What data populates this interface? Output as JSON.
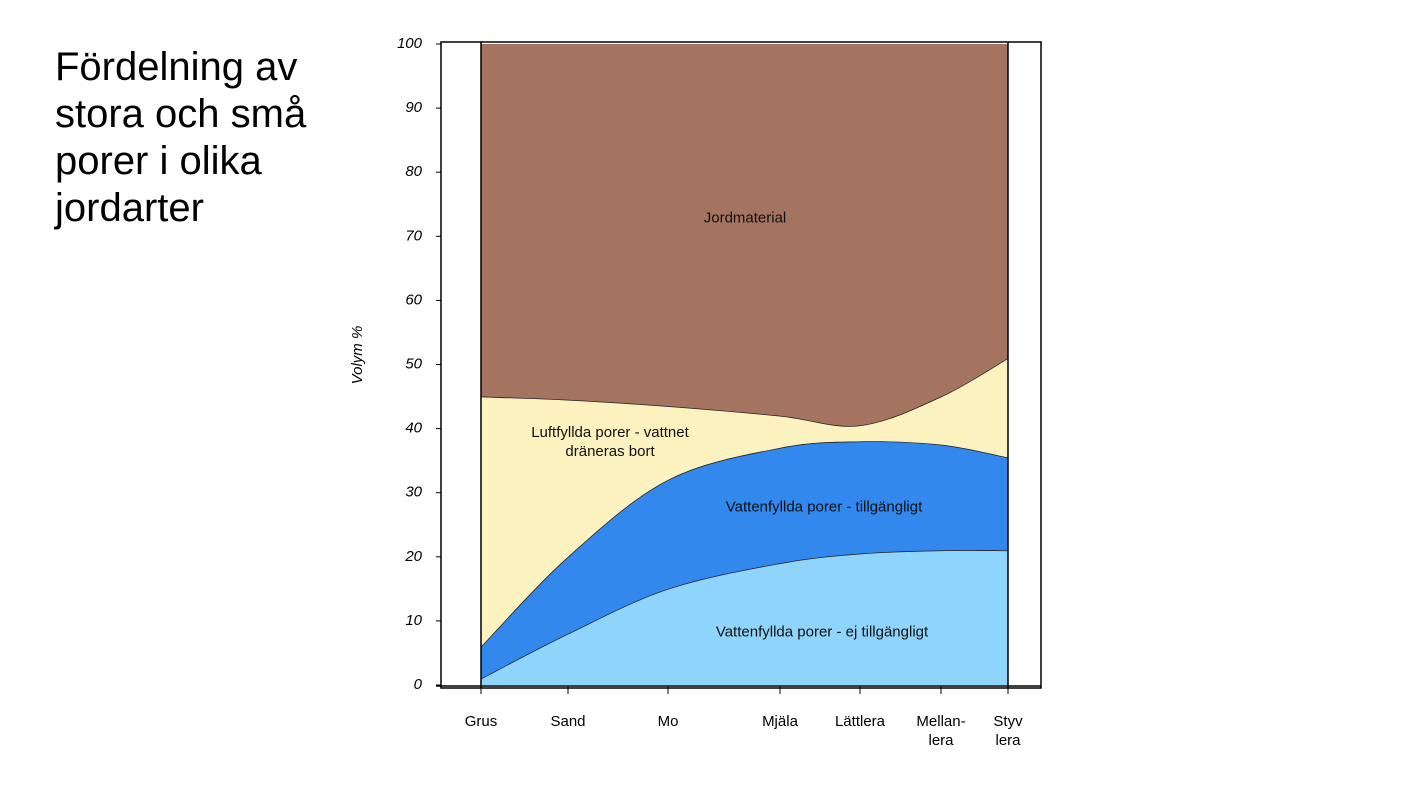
{
  "slide_title": "Fördelning av stora och små porer i olika jordarter",
  "chart_data": {
    "type": "stacked-area",
    "y_label": "Volym %",
    "categories": [
      "Grus",
      "Sand",
      "Mo",
      "Mjäla",
      "Lättlera",
      "Mellan-lera",
      "Styv lera"
    ],
    "series": [
      {
        "name": "Vattenfyllda porer - ej tillgängligt",
        "color": "#8fd4fb",
        "values": [
          1,
          8,
          15,
          19,
          20.5,
          21,
          21
        ]
      },
      {
        "name": "Vattenfyllda porer - tillgängligt",
        "color": "#3388ee",
        "values": [
          5,
          12,
          17,
          18,
          17.5,
          16.5,
          14.5
        ]
      },
      {
        "name": "Luftfyllda porer - vattnet dräneras bort",
        "color": "#fbf2c0",
        "values": [
          39,
          24.5,
          11.5,
          5,
          2.5,
          7.5,
          15.5
        ]
      },
      {
        "name": "Jordmaterial",
        "color": "#a47460",
        "values": [
          55,
          55.5,
          56.5,
          58,
          59.5,
          55,
          49
        ]
      }
    ],
    "ylim": [
      0,
      100
    ],
    "yticks": [
      0,
      10,
      20,
      30,
      40,
      50,
      60,
      70,
      80,
      90,
      100
    ]
  }
}
